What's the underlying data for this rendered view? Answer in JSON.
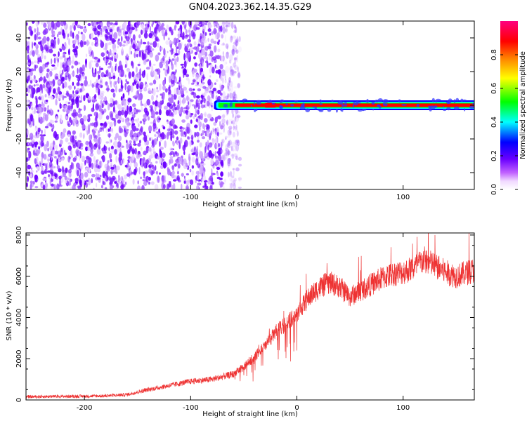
{
  "title": "GN04.2023.362.14.35.G29",
  "chart_data": [
    {
      "type": "heatmap",
      "xlabel": "Height of straight line (km)",
      "ylabel": "Frequency (Hz)",
      "xlim": [
        -255,
        167
      ],
      "ylim": [
        -50,
        50
      ],
      "xticks": [
        -200,
        -100,
        0,
        100
      ],
      "xtick_labels": [
        "-200",
        "-100",
        "0",
        "100"
      ],
      "yticks": [
        -40,
        -20,
        0,
        20,
        40
      ],
      "ytick_labels": [
        "-40",
        "-20",
        "0",
        "20",
        "40"
      ],
      "colorbar": {
        "label": "Normalized spectral amplitude",
        "range": [
          0,
          1
        ],
        "ticks": [
          0.0,
          0.2,
          0.4,
          0.6,
          0.8
        ],
        "tick_labels": [
          "0.0",
          "0.2",
          "0.4",
          "0.6",
          "0.8"
        ],
        "colors": [
          "#ffffff",
          "#ff00ff",
          "#8000ff",
          "#0000ff",
          "#00ffff",
          "#00ff00",
          "#ffff00",
          "#ff8000",
          "#ff0000",
          "#ff0080"
        ]
      },
      "regions": [
        {
          "name": "noise",
          "x_range": [
            -255,
            -70
          ],
          "freq_range": [
            -50,
            50
          ],
          "amplitude_range": [
            0.02,
            0.12
          ]
        },
        {
          "name": "carrier",
          "x_range": [
            -78,
            167
          ],
          "freq_center": 0,
          "amplitude_peak": 0.92
        }
      ],
      "grid": false
    },
    {
      "type": "line",
      "xlabel": "Height of straight line (km)",
      "ylabel": "SNR (10 * v/v)",
      "xlim": [
        -255,
        167
      ],
      "ylim": [
        0,
        8100
      ],
      "xticks": [
        -200,
        -100,
        0,
        100
      ],
      "xtick_labels": [
        "-200",
        "-100",
        "0",
        "100"
      ],
      "yticks": [
        0,
        2000,
        4000,
        6000,
        8000
      ],
      "ytick_labels": [
        "0",
        "2000",
        "4000",
        "6000",
        "8000"
      ],
      "color": "#ee3333",
      "x": [
        -255,
        -230,
        -200,
        -180,
        -160,
        -140,
        -120,
        -100,
        -80,
        -60,
        -50,
        -40,
        -30,
        -20,
        -10,
        0,
        10,
        20,
        30,
        40,
        50,
        60,
        70,
        80,
        90,
        100,
        110,
        120,
        130,
        140,
        150,
        167
      ],
      "y": [
        150,
        170,
        180,
        200,
        260,
        500,
        700,
        900,
        1000,
        1250,
        1600,
        2100,
        2600,
        3300,
        3700,
        4200,
        4900,
        5400,
        5700,
        5500,
        5000,
        5300,
        5600,
        5900,
        6100,
        6200,
        6400,
        6800,
        6500,
        6200,
        6000,
        6300
      ],
      "grid": false
    }
  ]
}
